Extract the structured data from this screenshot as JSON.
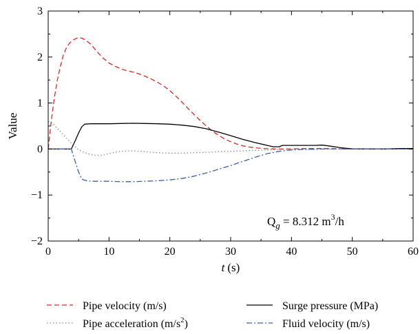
{
  "chart_data": {
    "type": "line",
    "xlabel": "t (s)",
    "xlabel_var": "t",
    "xlabel_unit": "(s)",
    "ylabel": "Value",
    "xlim": [
      0,
      60
    ],
    "ylim": [
      -2,
      3
    ],
    "x_ticks": [
      0,
      10,
      20,
      30,
      40,
      50,
      60
    ],
    "y_ticks": [
      -2,
      -1,
      0,
      1,
      2,
      3
    ],
    "x_tick_labels": [
      "0",
      "10",
      "20",
      "30",
      "40",
      "50",
      "60"
    ],
    "y_tick_labels": [
      "−2",
      "−1",
      "0",
      "1",
      "2",
      "3"
    ],
    "grid": false,
    "legend_position": "bottom",
    "annotation": {
      "text": "Q_g = 8.312 m^3/h",
      "q": "Q",
      "sub": "g",
      "value": " = 8.312 m",
      "sup": "3",
      "unit": "/h"
    },
    "series": [
      {
        "name": "Pipe velocity (m/s)",
        "legend_main": "Pipe velocity (m/s)",
        "color": "#d62728",
        "style": "dashed",
        "x": [
          0,
          0.5,
          1,
          1.5,
          2,
          2.5,
          3,
          3.5,
          4,
          4.5,
          5,
          5.5,
          6,
          7,
          8,
          9,
          10,
          11,
          12,
          13,
          14,
          15,
          16,
          17,
          18,
          19,
          20,
          21,
          22,
          23,
          24,
          25,
          26,
          27,
          28,
          29,
          30,
          31,
          32,
          33,
          34,
          35,
          36,
          37,
          38,
          40,
          42,
          44,
          46,
          48,
          50,
          52,
          55,
          58,
          60
        ],
        "y": [
          0,
          0.6,
          1.1,
          1.5,
          1.8,
          2.05,
          2.2,
          2.3,
          2.36,
          2.4,
          2.42,
          2.41,
          2.38,
          2.28,
          2.12,
          1.98,
          1.87,
          1.8,
          1.74,
          1.7,
          1.67,
          1.63,
          1.58,
          1.52,
          1.45,
          1.37,
          1.27,
          1.15,
          1.02,
          0.88,
          0.75,
          0.62,
          0.5,
          0.39,
          0.3,
          0.22,
          0.16,
          0.11,
          0.07,
          0.045,
          0.028,
          0.015,
          0.008,
          0.003,
          0,
          0.005,
          0.01,
          0.01,
          0.01,
          0.005,
          0,
          0,
          0,
          0.005,
          0.01
        ]
      },
      {
        "name": "Pipe acceleration (m/s^2)",
        "legend_main": "Pipe acceleration (m/s",
        "legend_sup": "2",
        "legend_tail": ")",
        "color": "#8a8a8a",
        "style": "dotted",
        "x": [
          0,
          0.5,
          1,
          1.5,
          2,
          3,
          4,
          5,
          6,
          7,
          8,
          9,
          10,
          11,
          12,
          13,
          14,
          15,
          16,
          18,
          20,
          22,
          24,
          26,
          28,
          30,
          32,
          34,
          36,
          38,
          40,
          45,
          50,
          55,
          60
        ],
        "y": [
          0.6,
          0.58,
          0.52,
          0.45,
          0.38,
          0.24,
          0.1,
          -0.02,
          -0.08,
          -0.12,
          -0.14,
          -0.13,
          -0.1,
          -0.07,
          -0.05,
          -0.04,
          -0.04,
          -0.05,
          -0.06,
          -0.08,
          -0.09,
          -0.09,
          -0.08,
          -0.07,
          -0.06,
          -0.05,
          -0.04,
          -0.03,
          -0.02,
          -0.01,
          -0.005,
          0,
          0,
          0,
          0
        ]
      },
      {
        "name": "Surge pressure (MPa)",
        "legend_main": "Surge pressure (MPa)",
        "color": "#000000",
        "style": "solid",
        "x": [
          0,
          1,
          2,
          3,
          3.8,
          4.5,
          5,
          5.5,
          6,
          7,
          8,
          10,
          12,
          14,
          16,
          18,
          20,
          22,
          24,
          26,
          28,
          30,
          32,
          34,
          36,
          37,
          38,
          38.5,
          40,
          42,
          44,
          45,
          46,
          48,
          50,
          55,
          58,
          60
        ],
        "y": [
          0,
          0,
          0,
          0,
          0,
          0.2,
          0.35,
          0.48,
          0.54,
          0.55,
          0.55,
          0.55,
          0.555,
          0.56,
          0.555,
          0.55,
          0.54,
          0.52,
          0.49,
          0.44,
          0.37,
          0.29,
          0.21,
          0.14,
          0.08,
          0.05,
          0.05,
          0.08,
          0.08,
          0.08,
          0.08,
          0.085,
          0.07,
          0.03,
          0.005,
          0,
          0.01,
          0.01
        ]
      },
      {
        "name": "Fluid velocity (m/s)",
        "legend_main": "Fluid velocity (m/s)",
        "color": "#3a5fa8",
        "style": "dashdot",
        "x": [
          0,
          1,
          2,
          3,
          3.8,
          4.5,
          5,
          5.5,
          6,
          7,
          8,
          10,
          12,
          14,
          16,
          18,
          20,
          22,
          24,
          26,
          28,
          30,
          32,
          34,
          36,
          38,
          40,
          42,
          45,
          50,
          55,
          60
        ],
        "y": [
          0,
          0,
          0,
          0,
          0,
          -0.3,
          -0.5,
          -0.65,
          -0.68,
          -0.7,
          -0.7,
          -0.7,
          -0.71,
          -0.71,
          -0.7,
          -0.69,
          -0.67,
          -0.64,
          -0.59,
          -0.52,
          -0.44,
          -0.36,
          -0.27,
          -0.18,
          -0.1,
          -0.05,
          -0.02,
          -0.01,
          0,
          0,
          0,
          0
        ]
      }
    ]
  }
}
